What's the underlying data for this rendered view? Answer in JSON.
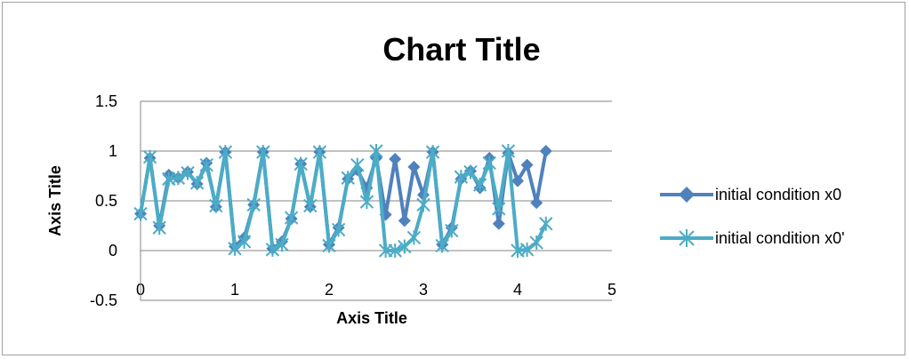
{
  "chart_data": {
    "type": "line",
    "title": "Chart Title",
    "xlabel": "Axis Title",
    "ylabel": "Axis Title",
    "xlim": [
      0,
      5
    ],
    "ylim": [
      -0.5,
      1.5
    ],
    "x_ticks": [
      "0",
      "1",
      "2",
      "3",
      "4",
      "5"
    ],
    "y_ticks": [
      "-0.5",
      "0",
      "0.5",
      "1",
      "1.5"
    ],
    "grid": true,
    "legend_position": "right",
    "series": [
      {
        "name": "initial condition x0",
        "color": "#4f81bd",
        "marker": "diamond",
        "x": [
          0,
          0.1,
          0.2,
          0.3,
          0.4,
          0.5,
          0.6,
          0.7,
          0.8,
          0.9,
          1.0,
          1.1,
          1.2,
          1.3,
          1.4,
          1.5,
          1.6,
          1.7,
          1.8,
          1.9,
          2.0,
          2.1,
          2.2,
          2.3,
          2.4,
          2.5,
          2.6,
          2.7,
          2.8,
          2.9,
          3.0,
          3.1,
          3.2,
          3.3,
          3.4,
          3.5,
          3.6,
          3.7,
          3.8,
          3.9,
          4.0,
          4.1,
          4.2,
          4.3
        ],
        "y": [
          0.37,
          0.93,
          0.25,
          0.76,
          0.73,
          0.79,
          0.67,
          0.88,
          0.44,
          0.99,
          0.04,
          0.13,
          0.46,
          0.99,
          0.02,
          0.09,
          0.32,
          0.87,
          0.44,
          0.99,
          0.06,
          0.23,
          0.72,
          0.81,
          0.63,
          0.93,
          0.36,
          0.92,
          0.3,
          0.84,
          0.56,
          0.99,
          0.06,
          0.23,
          0.72,
          0.8,
          0.63,
          0.93,
          0.27,
          0.98,
          0.7,
          0.86,
          0.48,
          1.0
        ]
      },
      {
        "name": "initial condition x0'",
        "color": "#4bacc6",
        "marker": "star",
        "x": [
          0,
          0.1,
          0.2,
          0.3,
          0.4,
          0.5,
          0.6,
          0.7,
          0.8,
          0.9,
          1.0,
          1.1,
          1.2,
          1.3,
          1.4,
          1.5,
          1.6,
          1.7,
          1.8,
          1.9,
          2.0,
          2.1,
          2.2,
          2.3,
          2.4,
          2.5,
          2.6,
          2.7,
          2.8,
          2.9,
          3.0,
          3.1,
          3.2,
          3.3,
          3.4,
          3.5,
          3.6,
          3.7,
          3.8,
          3.9,
          4.0,
          4.1,
          4.2,
          4.3
        ],
        "y": [
          0.37,
          0.94,
          0.23,
          0.72,
          0.73,
          0.78,
          0.68,
          0.86,
          0.45,
          0.99,
          0.02,
          0.09,
          0.46,
          0.99,
          0.01,
          0.06,
          0.33,
          0.87,
          0.45,
          0.99,
          0.05,
          0.21,
          0.73,
          0.86,
          0.49,
          1.0,
          0.0,
          0.0,
          0.04,
          0.13,
          0.46,
          0.99,
          0.05,
          0.2,
          0.74,
          0.79,
          0.66,
          0.88,
          0.42,
          1.0,
          0.0,
          0.01,
          0.08,
          0.27
        ]
      }
    ]
  }
}
